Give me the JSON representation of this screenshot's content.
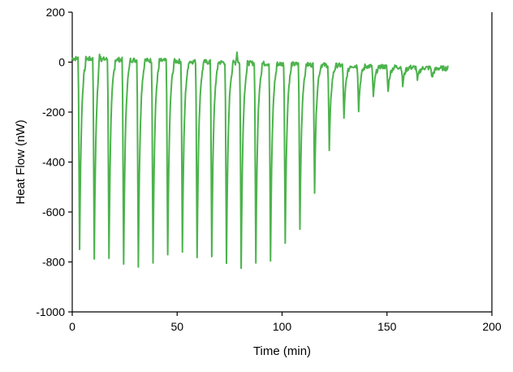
{
  "chart_data": {
    "type": "line",
    "title": "",
    "xlabel": "Time (min)",
    "ylabel": "Heat Flow (nW)",
    "xlim": [
      0,
      200
    ],
    "ylim": [
      -1000,
      200
    ],
    "xticks": [
      0,
      50,
      100,
      150,
      200
    ],
    "yticks": [
      200,
      0,
      -200,
      -400,
      -600,
      -800,
      -1000
    ],
    "xtick_labels": [
      "0",
      "50",
      "100",
      "150",
      "200"
    ],
    "ytick_labels": [
      "200",
      "0",
      "-200",
      "-400",
      "-600",
      "-800",
      "-1000"
    ],
    "grid": false,
    "legend": "none",
    "series": [
      {
        "color": "#4cb34c",
        "baseline_start": [
          0,
          15
        ],
        "baseline_end": [
          179,
          -25
        ],
        "noise_amplitude": 12,
        "spikes": [
          {
            "x": 3.5,
            "min": -750
          },
          {
            "x": 10.5,
            "min": -780
          },
          {
            "x": 17.5,
            "min": -790
          },
          {
            "x": 24.5,
            "min": -810
          },
          {
            "x": 31.5,
            "min": -815
          },
          {
            "x": 38.5,
            "min": -795
          },
          {
            "x": 45.5,
            "min": -780
          },
          {
            "x": 52.5,
            "min": -755
          },
          {
            "x": 59.5,
            "min": -780
          },
          {
            "x": 66.5,
            "min": -775
          },
          {
            "x": 73.5,
            "min": -810
          },
          {
            "x": 80.5,
            "min": -825
          },
          {
            "x": 87.5,
            "min": -800
          },
          {
            "x": 94.5,
            "min": -795
          },
          {
            "x": 101.5,
            "min": -715
          },
          {
            "x": 108.5,
            "min": -670
          },
          {
            "x": 115.5,
            "min": -515
          },
          {
            "x": 122.5,
            "min": -355
          },
          {
            "x": 129.5,
            "min": -230
          },
          {
            "x": 136.5,
            "min": -190
          },
          {
            "x": 143.5,
            "min": -145
          },
          {
            "x": 150.5,
            "min": -120
          },
          {
            "x": 157.5,
            "min": -95
          },
          {
            "x": 164.5,
            "min": -75
          },
          {
            "x": 171.5,
            "min": -65
          }
        ],
        "bumps": [
          {
            "x": 13,
            "y": 80
          },
          {
            "x": 78.5,
            "y": 40
          }
        ]
      }
    ]
  }
}
